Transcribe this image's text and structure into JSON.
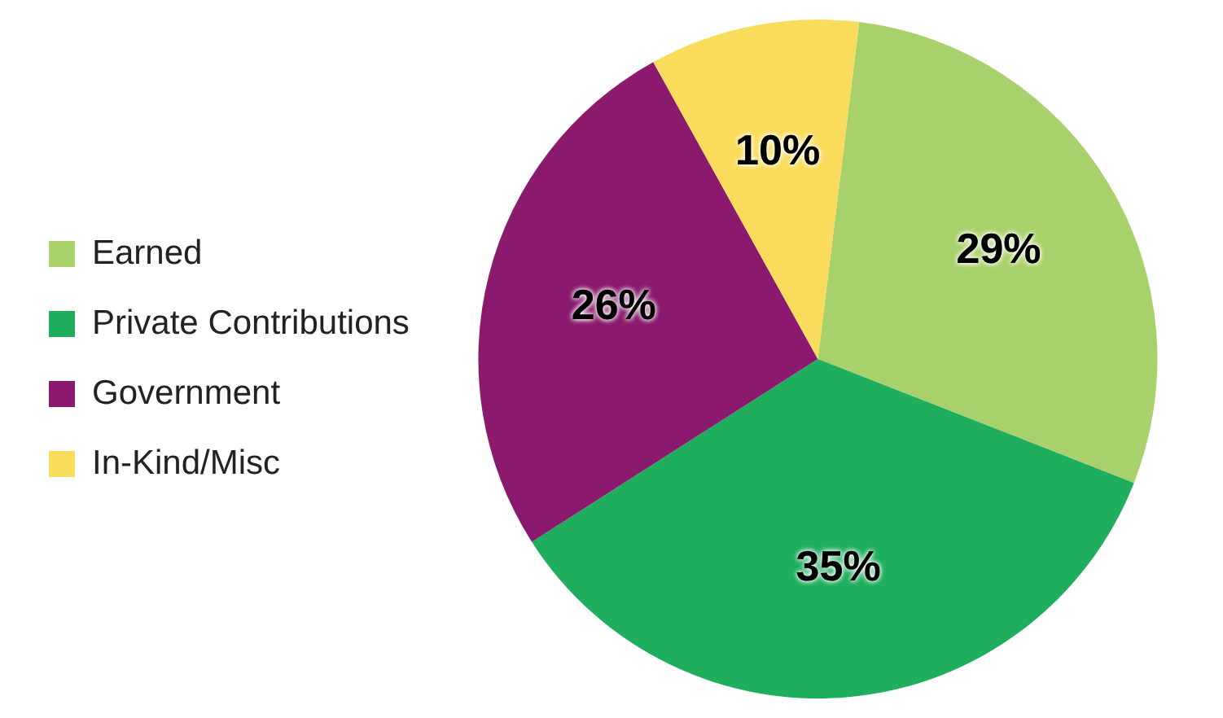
{
  "chart_data": {
    "type": "pie",
    "categories": [
      "Earned",
      "Private Contributions",
      "Government",
      "In-Kind/Misc"
    ],
    "values": [
      29,
      35,
      26,
      10
    ],
    "colors": [
      "#a9d16b",
      "#1fae5e",
      "#8b1a6e",
      "#f9dc5c"
    ],
    "value_labels": [
      "29%",
      "35%",
      "26%",
      "10%"
    ],
    "legend": "left"
  }
}
